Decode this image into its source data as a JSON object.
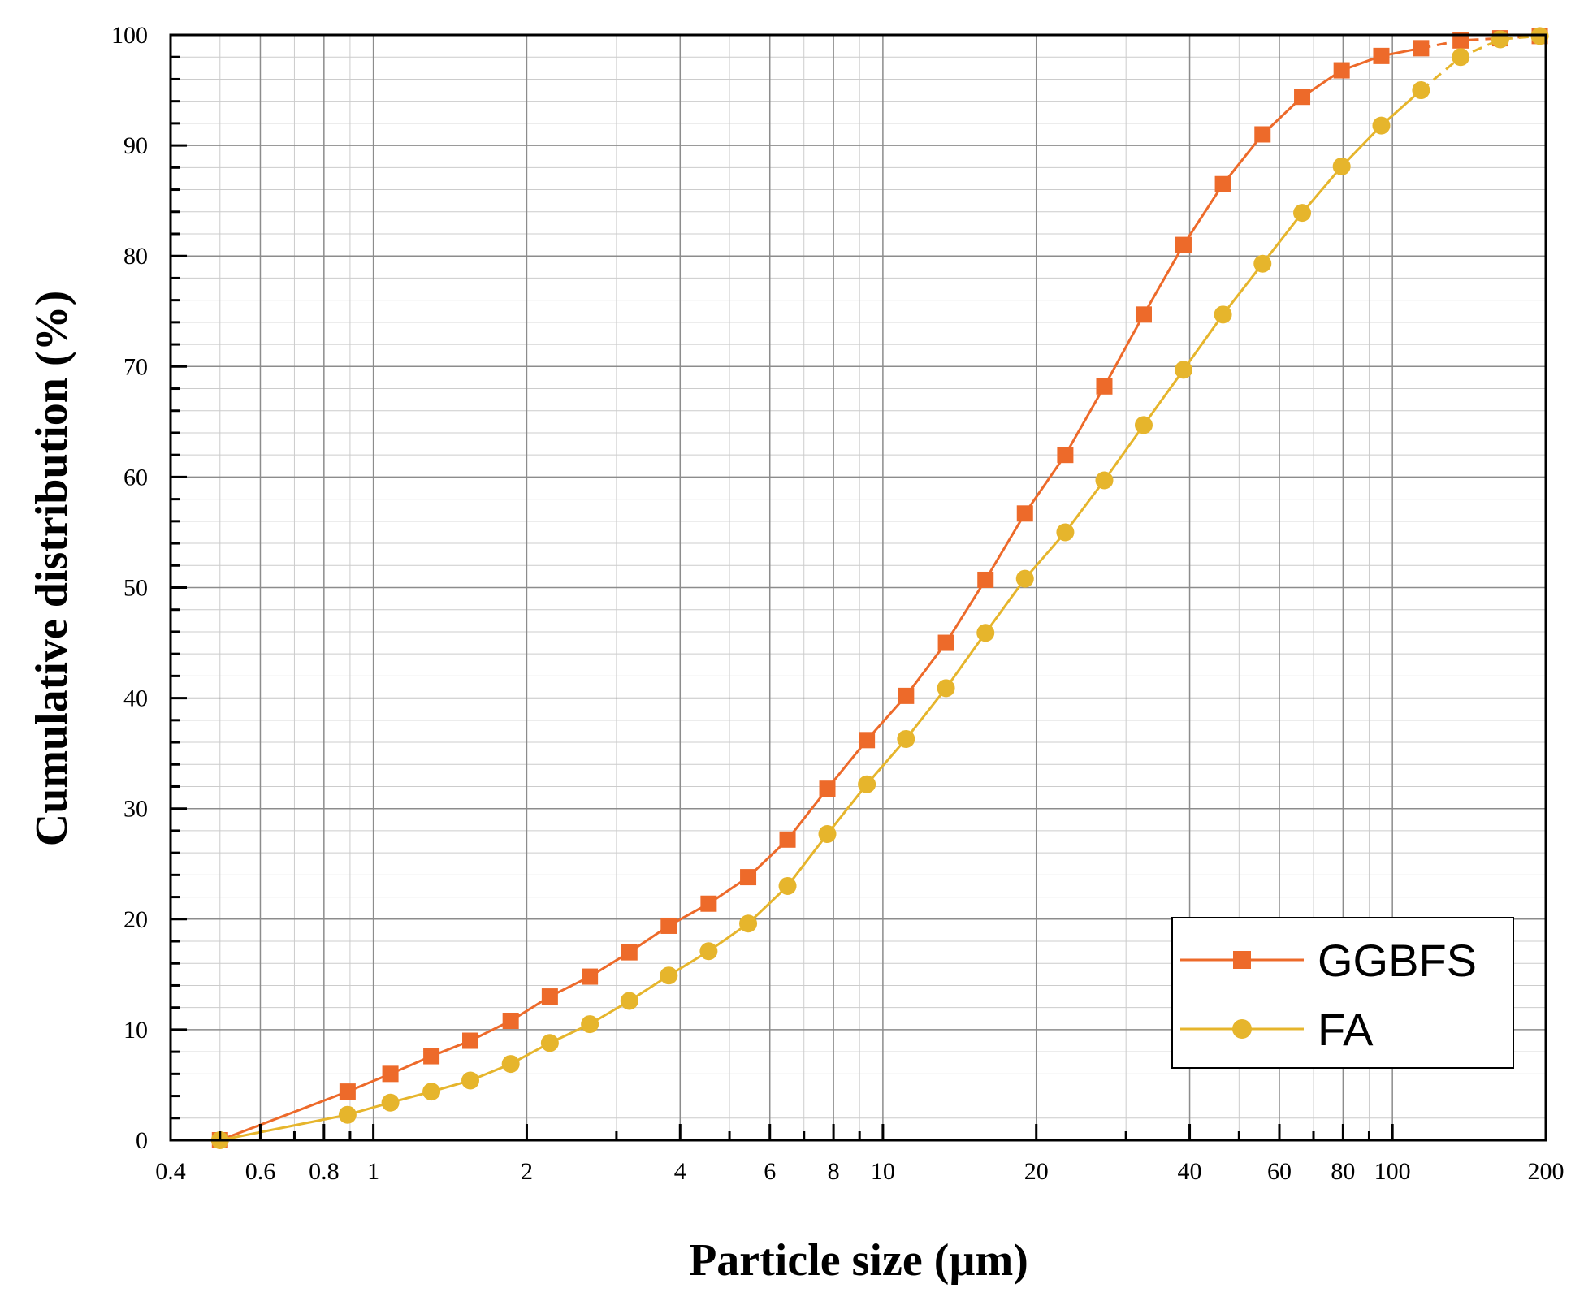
{
  "chart_data": {
    "type": "line",
    "x_scale": "log",
    "xlabel": "Particle size (µm)",
    "ylabel": "Cumulative distribution (%)",
    "xlim": [
      0.4,
      200
    ],
    "ylim": [
      0,
      100
    ],
    "grid": true,
    "x_tick_values": [
      0.4,
      0.6,
      0.8,
      1,
      2,
      4,
      6,
      8,
      10,
      20,
      40,
      60,
      80,
      100,
      200
    ],
    "x_tick_labels": [
      "0.4",
      "0.6",
      "0.8",
      "1",
      "2",
      "4",
      "6",
      "8",
      "10",
      "20",
      "40",
      "60",
      "80",
      "100",
      "200"
    ],
    "y_tick_values": [
      0,
      10,
      20,
      30,
      40,
      50,
      60,
      70,
      80,
      90,
      100
    ],
    "y_tick_labels": [
      "0",
      "10",
      "20",
      "30",
      "40",
      "50",
      "60",
      "70",
      "80",
      "90",
      "100"
    ],
    "legend_position": "bottom-right",
    "series": [
      {
        "name": "GGBFS",
        "color": "#ED6A2A",
        "marker": "square",
        "x": [
          0.5,
          0.89,
          1.08,
          1.3,
          1.55,
          1.86,
          2.22,
          2.66,
          3.18,
          3.8,
          4.55,
          5.44,
          6.5,
          7.78,
          9.3,
          11.1,
          13.3,
          15.9,
          19.0,
          22.8,
          27.2,
          32.5,
          38.9,
          46.5,
          55.6,
          66.5,
          79.5,
          95.1,
          113.8,
          136.1,
          162.8,
          194.6
        ],
        "y": [
          0,
          4.4,
          6.0,
          7.6,
          9.0,
          10.8,
          13.0,
          14.8,
          17.0,
          19.4,
          21.4,
          23.8,
          27.2,
          31.8,
          36.2,
          40.2,
          45.0,
          50.7,
          56.7,
          62.0,
          68.2,
          74.7,
          81.0,
          86.5,
          91.0,
          94.4,
          96.8,
          98.1,
          98.8,
          99.5,
          99.7,
          99.9
        ]
      },
      {
        "name": "FA",
        "color": "#E6B52C",
        "marker": "circle",
        "x": [
          0.5,
          0.89,
          1.08,
          1.3,
          1.55,
          1.86,
          2.22,
          2.66,
          3.18,
          3.8,
          4.55,
          5.44,
          6.5,
          7.78,
          9.3,
          11.1,
          13.3,
          15.9,
          19.0,
          22.8,
          27.2,
          32.5,
          38.9,
          46.5,
          55.6,
          66.5,
          79.5,
          95.1,
          113.8,
          136.1,
          162.8,
          194.6
        ],
        "y": [
          0,
          2.3,
          3.4,
          4.4,
          5.4,
          6.9,
          8.8,
          10.5,
          12.6,
          14.9,
          17.1,
          19.6,
          23.0,
          27.7,
          32.2,
          36.3,
          40.9,
          45.9,
          50.8,
          55.0,
          59.7,
          64.7,
          69.7,
          74.7,
          79.3,
          83.9,
          88.1,
          91.8,
          95.0,
          98.0,
          99.6,
          99.9
        ]
      }
    ]
  }
}
